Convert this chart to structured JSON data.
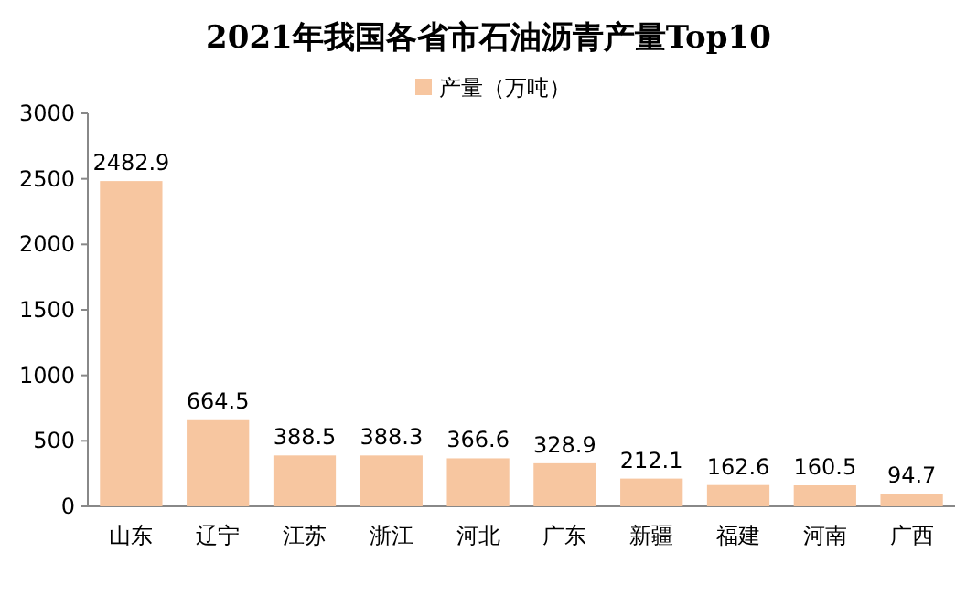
{
  "chart_data": {
    "type": "bar",
    "title": "2021年我国各省市石油沥青产量Top10",
    "categories": [
      "山东",
      "辽宁",
      "江苏",
      "浙江",
      "河北",
      "广东",
      "新疆",
      "福建",
      "河南",
      "广西"
    ],
    "series": [
      {
        "name": "产量（万吨）",
        "color": "#f7c6a0",
        "values": [
          2482.9,
          664.5,
          388.5,
          388.3,
          366.6,
          328.9,
          212.1,
          162.6,
          160.5,
          94.7
        ]
      }
    ],
    "ylim": [
      0,
      3000
    ],
    "yticks": [
      0,
      500,
      1000,
      1500,
      2000,
      2500,
      3000
    ],
    "data_labels": true,
    "legend": "top"
  }
}
